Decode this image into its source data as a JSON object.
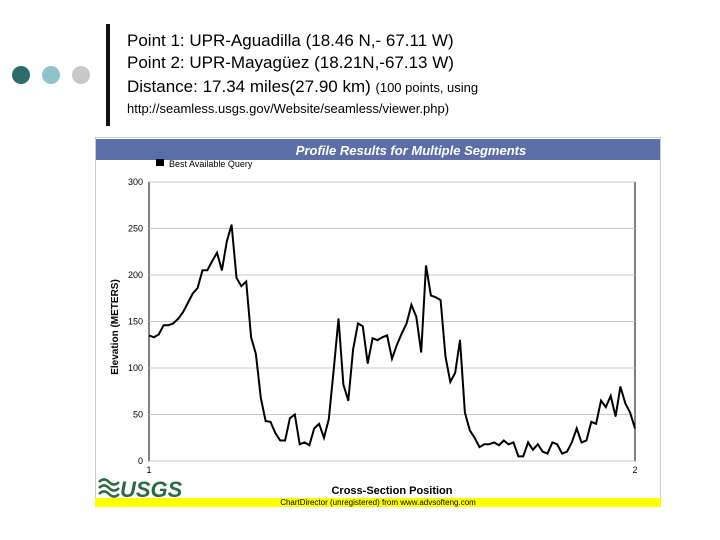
{
  "slide": {
    "bullet_colors": [
      "#2f6b6b",
      "#8fc3c8",
      "#c8c8c8"
    ],
    "point1": "Point 1: UPR-Aguadilla (18.46 N,- 67.11 W)",
    "point2": "Point 2: UPR-Mayagüez (18.21N,-67.13 W)",
    "distance": "Distance: 17.34 miles(27.90 km)",
    "distance_note": "(100 points, using",
    "source_url": "http://seamless.usgs.gov/Website/seamless/viewer.php)"
  },
  "chart_data": {
    "type": "line",
    "title": "Profile Results for Multiple Segments",
    "legend": "Best Available Query",
    "legend_placement": "top-left",
    "ylabel": "Elevation (METERS)",
    "xlabel": "Cross-Section Position",
    "ylim": [
      0,
      300
    ],
    "xlim": [
      1,
      2
    ],
    "yticks": [
      "0",
      "50",
      "100",
      "150",
      "200",
      "250",
      "300"
    ],
    "xticks": [
      "1",
      "2"
    ],
    "grid": true,
    "line_color": "#000000",
    "title_bar_color": "#5c6ea8",
    "footer_color": "#ffff00",
    "logo_text": "USGS",
    "footer": "ChartDirector (unregistered) from www.advsofteng.com",
    "series": [
      {
        "x": [
          1.0,
          1.01,
          1.02,
          1.03,
          1.04,
          1.05,
          1.06,
          1.07,
          1.08,
          1.09,
          1.1,
          1.11,
          1.12,
          1.13,
          1.14,
          1.15,
          1.16,
          1.17,
          1.18,
          1.19,
          1.2,
          1.21,
          1.22,
          1.23,
          1.24,
          1.25,
          1.26,
          1.27,
          1.28,
          1.29,
          1.3,
          1.31,
          1.32,
          1.33,
          1.34,
          1.35,
          1.36,
          1.37,
          1.38,
          1.39,
          1.4,
          1.41,
          1.42,
          1.43,
          1.44,
          1.45,
          1.46,
          1.47,
          1.48,
          1.49,
          1.5,
          1.51,
          1.52,
          1.53,
          1.54,
          1.55,
          1.56,
          1.57,
          1.58,
          1.59,
          1.6,
          1.61,
          1.62,
          1.63,
          1.64,
          1.65,
          1.66,
          1.67,
          1.68,
          1.69,
          1.7,
          1.71,
          1.72,
          1.73,
          1.74,
          1.75,
          1.76,
          1.77,
          1.78,
          1.79,
          1.8,
          1.81,
          1.82,
          1.83,
          1.84,
          1.85,
          1.86,
          1.87,
          1.88,
          1.89,
          1.9,
          1.91,
          1.92,
          1.93,
          1.94,
          1.95,
          1.96,
          1.97,
          1.98,
          1.99,
          2.0
        ],
        "y": [
          135,
          133,
          136,
          146,
          146,
          148,
          153,
          160,
          170,
          180,
          186,
          205,
          205,
          215,
          224,
          205,
          236,
          254,
          197,
          188,
          193,
          133,
          115,
          68,
          43,
          42,
          30,
          22,
          22,
          46,
          50,
          18,
          20,
          17,
          35,
          40,
          25,
          45,
          98,
          153,
          82,
          65,
          120,
          148,
          145,
          105,
          132,
          130,
          133,
          135,
          110,
          125,
          137,
          148,
          168,
          155,
          117,
          210,
          178,
          176,
          173,
          112,
          85,
          95,
          130,
          52,
          33,
          25,
          15,
          18,
          18,
          20,
          17,
          22,
          18,
          20,
          5,
          5,
          20,
          12,
          18,
          10,
          8,
          20,
          18,
          8,
          10,
          20,
          35,
          20,
          22,
          42,
          40,
          65,
          58,
          70,
          48,
          80,
          62,
          52,
          35
        ]
      }
    ]
  }
}
